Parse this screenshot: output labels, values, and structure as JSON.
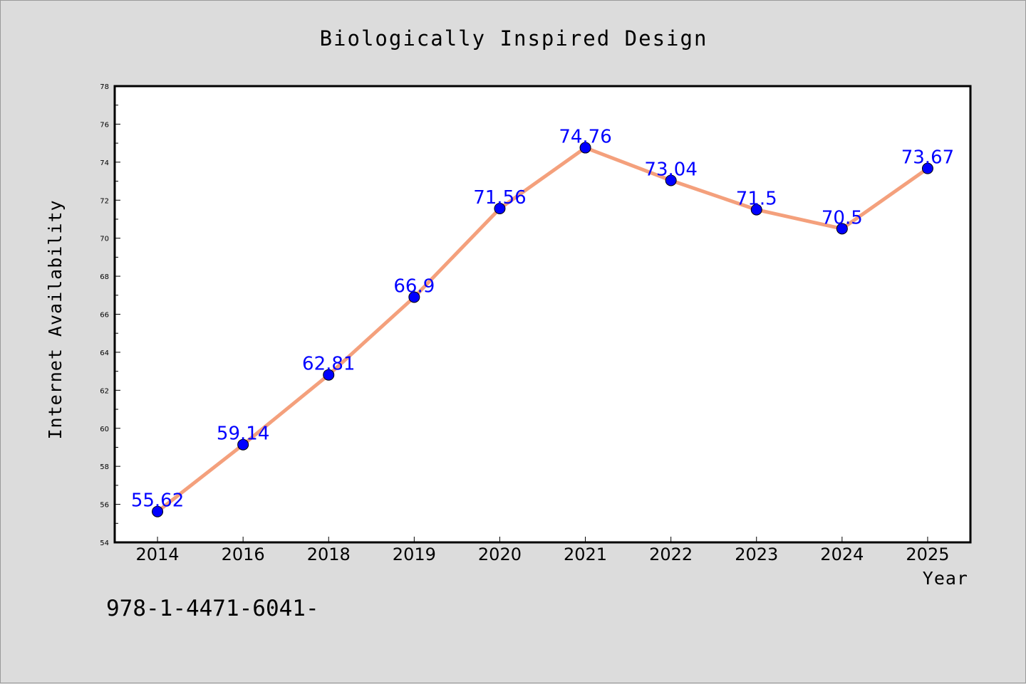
{
  "chart_data": {
    "type": "line",
    "title": "Biologically Inspired Design",
    "xlabel": "Year",
    "ylabel": "Internet Availability",
    "categories": [
      "2014",
      "2016",
      "2018",
      "2019",
      "2020",
      "2021",
      "2022",
      "2023",
      "2024",
      "2025"
    ],
    "series": [
      {
        "values": [
          55.62,
          59.14,
          62.81,
          66.9,
          71.56,
          74.76,
          73.04,
          71.5,
          70.5,
          73.67
        ],
        "data_labels": [
          "55.62",
          "59.14",
          "62.81",
          "66.9",
          "71.56",
          "74.76",
          "73.04",
          "71.5",
          "70.5",
          "73.67"
        ],
        "line_color": "#f4a07c",
        "marker_color": "#0000ff"
      }
    ],
    "ylim": [
      54,
      78
    ],
    "yticks": [
      "54",
      "56",
      "58",
      "60",
      "62",
      "64",
      "66",
      "68",
      "70",
      "72",
      "74",
      "76",
      "78"
    ],
    "grid": false,
    "legend": "none"
  },
  "footnote": "978-1-4471-6041-",
  "colors": {
    "background": "#dcdcdc",
    "plot_background": "#ffffff",
    "label_color": "#0000ff"
  }
}
